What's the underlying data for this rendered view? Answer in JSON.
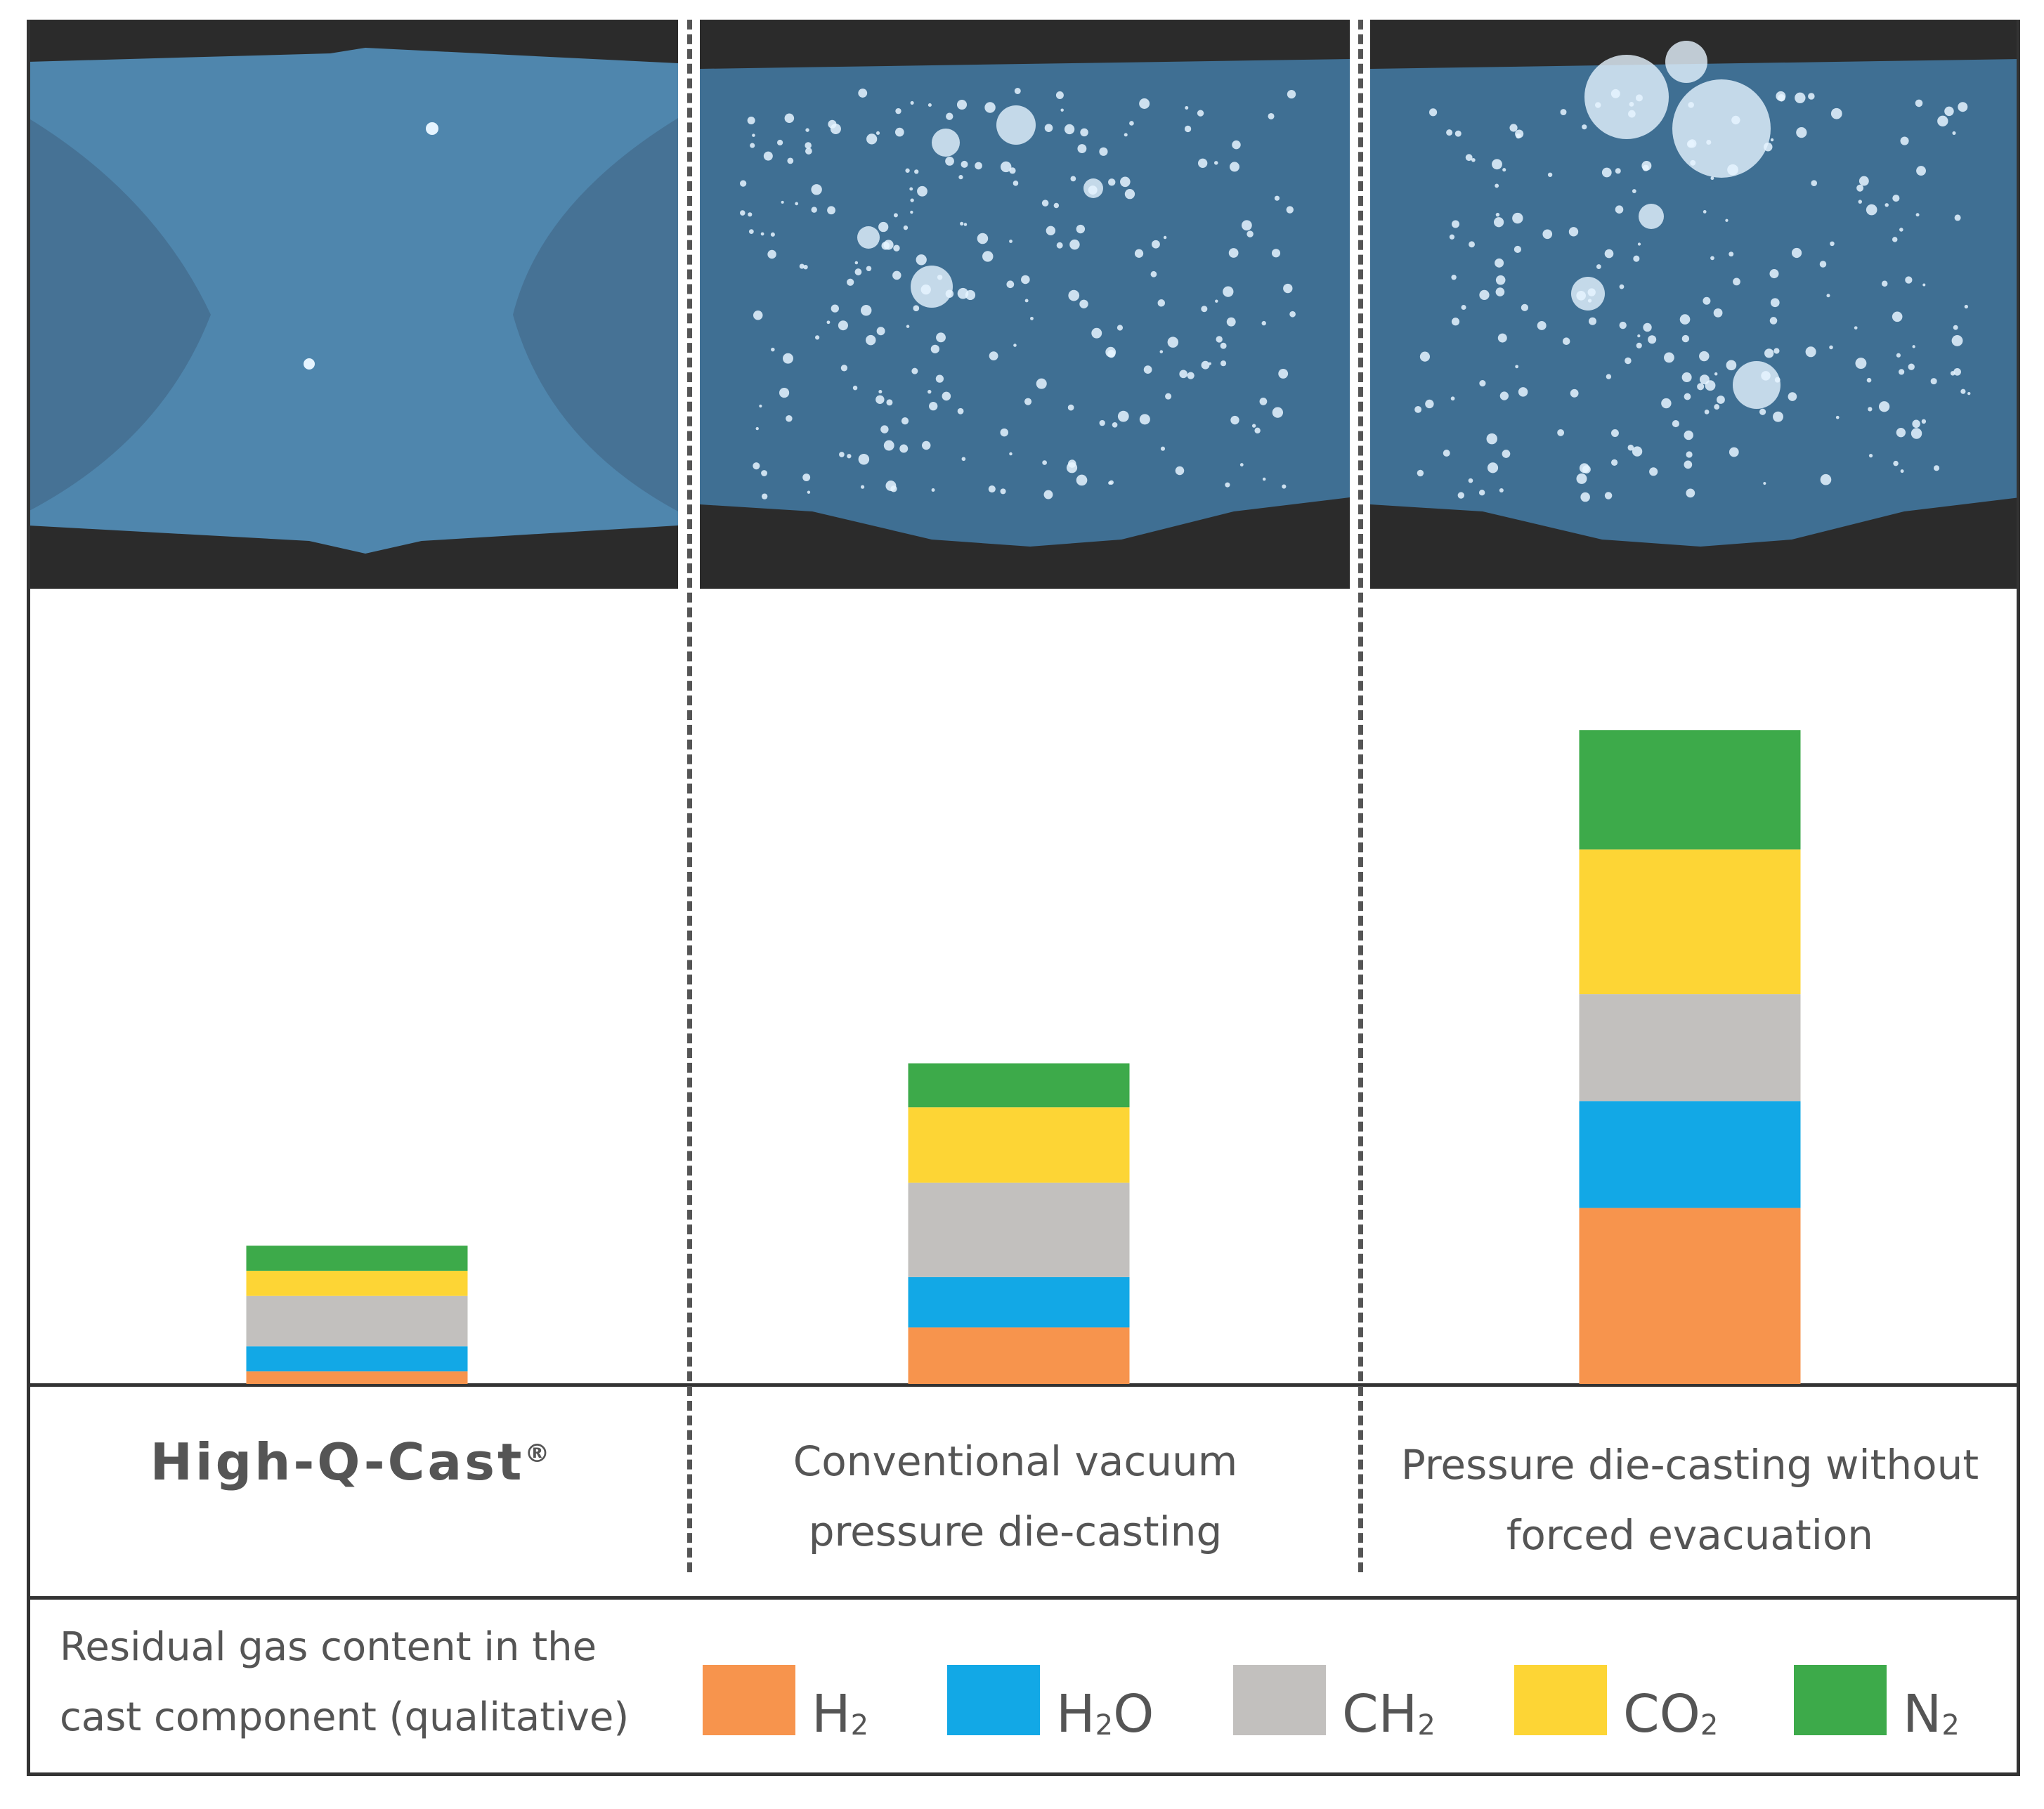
{
  "chart_data": {
    "type": "bar",
    "stacked": true,
    "title": "",
    "xlabel": "",
    "ylabel": "",
    "ylim": [
      0,
      100
    ],
    "categories": [
      "High-Q-Cast®",
      "Conventional vacuum pressure die-casting",
      "Pressure die-casting without forced evacuation"
    ],
    "series": [
      {
        "name": "H2",
        "label_main": "H",
        "label_sub": "2",
        "label_tail": "",
        "color": "#F7944D",
        "values": [
          2,
          9,
          28
        ]
      },
      {
        "name": "H2O",
        "label_main": "H",
        "label_sub": "2",
        "label_tail": "O",
        "color": "#12A8E6",
        "values": [
          4,
          8,
          17
        ]
      },
      {
        "name": "CH2",
        "label_main": "CH",
        "label_sub": "2",
        "label_tail": "",
        "color": "#C2C0BE",
        "values": [
          8,
          15,
          17
        ]
      },
      {
        "name": "CO2",
        "label_main": "CO",
        "label_sub": "2",
        "label_tail": "",
        "color": "#FDD535",
        "values": [
          4,
          12,
          23
        ]
      },
      {
        "name": "N2",
        "label_main": "N",
        "label_sub": "2",
        "label_tail": "",
        "color": "#3DAA4A",
        "values": [
          4,
          7,
          19
        ]
      }
    ],
    "legend_title": "Residual gas content in the cast component (qualitative)"
  },
  "labels": {
    "col1_brand": "High-Q-Cast",
    "col1_mark": "®",
    "col2_line1": "Conventional vacuum",
    "col2_line2": "pressure die-casting",
    "col3_line1": "Pressure die-casting without",
    "col3_line2": "forced evacuation"
  },
  "legend": {
    "title_line1": "Residual gas content in the",
    "title_line2": "cast component (qualitative)"
  },
  "colors": {
    "photo_background": "#2b2b2b",
    "photo_sample": "#4f86ad",
    "pore": "#e6f4ff"
  }
}
